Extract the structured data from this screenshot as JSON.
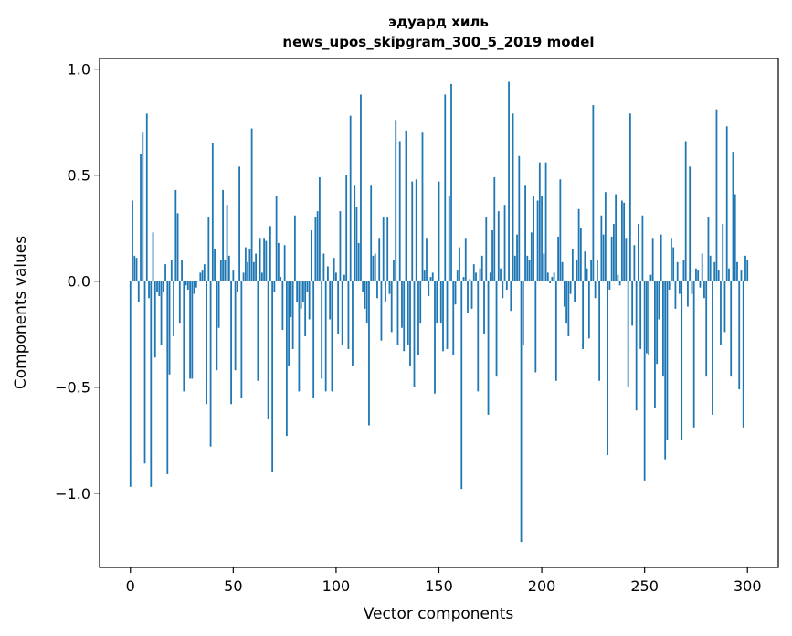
{
  "chart_data": {
    "type": "bar",
    "title_line1": "эдуард хиль",
    "title_line2": "news_upos_skipgram_300_5_2019 model",
    "xlabel": "Vector components",
    "ylabel": "Components values",
    "xlim": [
      -15,
      315
    ],
    "ylim": [
      -1.35,
      1.05
    ],
    "xticks": [
      0,
      50,
      100,
      150,
      200,
      250,
      300
    ],
    "xtick_labels": [
      "0",
      "50",
      "100",
      "150",
      "200",
      "250",
      "300"
    ],
    "yticks": [
      -1.0,
      -0.5,
      0.0,
      0.5,
      1.0
    ],
    "ytick_labels": [
      "−1.0",
      "−0.5",
      "0.0",
      "0.5",
      "1.0"
    ],
    "bar_color": "#1f77b4",
    "grid": false,
    "values": [
      -0.97,
      0.38,
      0.12,
      0.11,
      -0.1,
      0.6,
      0.7,
      -0.86,
      0.79,
      -0.08,
      -0.97,
      0.23,
      -0.36,
      -0.05,
      -0.07,
      -0.3,
      -0.05,
      0.08,
      -0.91,
      -0.44,
      0.1,
      -0.26,
      0.43,
      0.32,
      -0.2,
      0.1,
      -0.52,
      -0.02,
      -0.04,
      -0.46,
      -0.46,
      -0.06,
      -0.03,
      0.0,
      0.04,
      0.05,
      0.08,
      -0.58,
      0.3,
      -0.78,
      0.65,
      0.15,
      -0.42,
      -0.22,
      0.1,
      0.43,
      0.1,
      0.36,
      0.12,
      -0.58,
      0.05,
      -0.42,
      -0.05,
      0.54,
      -0.55,
      0.04,
      0.16,
      0.09,
      0.15,
      0.72,
      0.09,
      0.13,
      -0.47,
      0.2,
      0.04,
      0.2,
      0.19,
      -0.65,
      0.26,
      -0.9,
      -0.05,
      0.4,
      0.18,
      0.02,
      -0.23,
      0.17,
      -0.73,
      -0.4,
      -0.17,
      -0.32,
      0.31,
      -0.1,
      -0.52,
      -0.13,
      -0.1,
      -0.26,
      -0.05,
      -0.18,
      0.24,
      -0.55,
      0.3,
      0.33,
      0.49,
      -0.46,
      0.13,
      -0.52,
      0.07,
      -0.18,
      -0.52,
      0.11,
      0.04,
      -0.25,
      0.33,
      -0.3,
      0.03,
      0.5,
      -0.32,
      0.78,
      -0.4,
      0.45,
      0.35,
      0.18,
      0.88,
      -0.05,
      -0.13,
      -0.2,
      -0.68,
      0.45,
      0.12,
      0.13,
      -0.08,
      0.2,
      -0.28,
      0.3,
      -0.1,
      0.3,
      -0.06,
      -0.24,
      0.1,
      0.76,
      -0.3,
      0.66,
      -0.22,
      -0.33,
      0.71,
      -0.3,
      -0.4,
      0.47,
      -0.5,
      0.48,
      -0.35,
      -0.2,
      0.7,
      0.05,
      0.2,
      -0.07,
      0.02,
      0.04,
      -0.53,
      -0.2,
      0.47,
      -0.2,
      -0.33,
      0.88,
      -0.32,
      0.4,
      0.93,
      -0.35,
      -0.11,
      0.05,
      0.16,
      -0.98,
      0.02,
      0.2,
      -0.15,
      0.01,
      -0.13,
      0.08,
      0.04,
      -0.52,
      0.06,
      0.12,
      -0.25,
      0.3,
      -0.63,
      0.04,
      0.24,
      0.49,
      -0.45,
      0.33,
      0.06,
      -0.08,
      0.36,
      -0.04,
      0.94,
      -0.14,
      0.79,
      0.12,
      0.22,
      0.59,
      -1.23,
      -0.3,
      0.45,
      0.12,
      0.1,
      0.23,
      0.4,
      -0.43,
      0.38,
      0.56,
      0.4,
      0.13,
      0.56,
      0.04,
      -0.01,
      0.02,
      0.04,
      -0.47,
      0.21,
      0.48,
      0.09,
      -0.12,
      -0.2,
      -0.26,
      -0.06,
      0.15,
      -0.1,
      0.1,
      0.34,
      0.25,
      -0.32,
      0.14,
      0.06,
      -0.27,
      0.1,
      0.83,
      -0.08,
      0.1,
      -0.47,
      0.31,
      0.22,
      0.42,
      -0.82,
      -0.04,
      0.21,
      0.27,
      0.41,
      0.03,
      -0.02,
      0.38,
      0.37,
      0.2,
      -0.5,
      0.79,
      -0.21,
      0.17,
      -0.61,
      0.27,
      -0.32,
      0.31,
      -0.94,
      -0.34,
      -0.35,
      0.03,
      0.2,
      -0.6,
      -0.39,
      -0.18,
      0.22,
      -0.45,
      -0.84,
      -0.75,
      -0.04,
      0.2,
      0.16,
      -0.13,
      0.09,
      -0.06,
      -0.75,
      0.1,
      0.66,
      -0.12,
      0.54,
      -0.06,
      -0.69,
      0.06,
      0.05,
      -0.03,
      0.13,
      -0.08,
      -0.45,
      0.3,
      0.12,
      -0.63,
      0.09,
      0.81,
      0.05,
      -0.3,
      0.27,
      -0.24,
      0.73,
      0.06,
      -0.45,
      0.61,
      0.41,
      0.09,
      -0.51,
      0.05,
      -0.69,
      0.12,
      0.1
    ]
  }
}
